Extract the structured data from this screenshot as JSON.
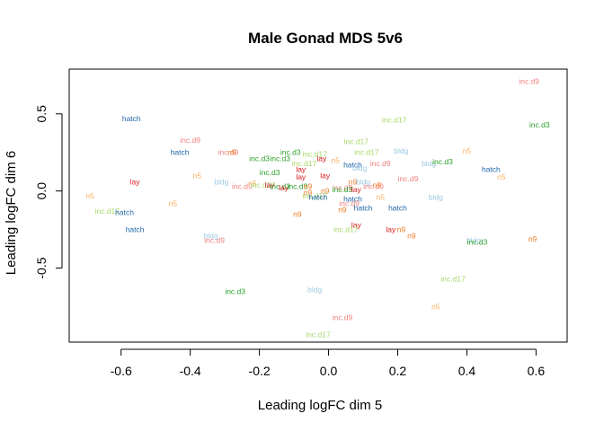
{
  "chart_data": {
    "type": "scatter",
    "title": "Male Gonad MDS 5v6",
    "xlabel": "Leading logFC dim 5",
    "ylabel": "Leading logFC dim 6",
    "xlim": [
      -0.75,
      0.69
    ],
    "ylim": [
      -0.98,
      0.79
    ],
    "x_ticks": [
      -0.6,
      -0.4,
      -0.2,
      0.0,
      0.2,
      0.4,
      0.6
    ],
    "x_tick_labels": [
      "-0.6",
      "-0.4",
      "-0.2",
      "0.0",
      "0.2",
      "0.4",
      "0.6"
    ],
    "y_ticks": [
      -0.5,
      0.0,
      0.5
    ],
    "y_tick_labels": [
      "-0.5",
      "0.0",
      "0.5"
    ],
    "grid": false,
    "legend": "none",
    "group_colors": {
      "hatch": "#1f65a8",
      "inc.d9": "#f08080",
      "inc.d3": "#2ca02c",
      "inc.d17": "#a6d96a",
      "bldg": "#9ecae1",
      "lay": "#d7191c",
      "n5": "#fdae61",
      "n9": "#f07c28"
    },
    "points": [
      {
        "label": "inc.d9",
        "x": 0.58,
        "y": 0.71
      },
      {
        "label": "hatch",
        "x": -0.57,
        "y": 0.47
      },
      {
        "label": "inc.d17",
        "x": 0.19,
        "y": 0.46
      },
      {
        "label": "inc.d3",
        "x": 0.61,
        "y": 0.43
      },
      {
        "label": "inc.d9",
        "x": -0.4,
        "y": 0.33
      },
      {
        "label": "inc.d17",
        "x": 0.08,
        "y": 0.32
      },
      {
        "label": "hatch",
        "x": -0.43,
        "y": 0.25
      },
      {
        "label": "inc.d9",
        "x": -0.29,
        "y": 0.25
      },
      {
        "label": "n9",
        "x": -0.28,
        "y": 0.25
      },
      {
        "label": "inc.d3",
        "x": -0.11,
        "y": 0.25
      },
      {
        "label": "inc.d17",
        "x": -0.04,
        "y": 0.24
      },
      {
        "label": "inc.d17",
        "x": 0.11,
        "y": 0.25
      },
      {
        "label": "bldg",
        "x": 0.21,
        "y": 0.26
      },
      {
        "label": "n5",
        "x": 0.4,
        "y": 0.26
      },
      {
        "label": "inc.d3",
        "x": -0.2,
        "y": 0.21
      },
      {
        "label": "inc.d3",
        "x": -0.14,
        "y": 0.21
      },
      {
        "label": "inc.d17",
        "x": -0.07,
        "y": 0.18
      },
      {
        "label": "lay",
        "x": -0.02,
        "y": 0.21
      },
      {
        "label": "n5",
        "x": 0.02,
        "y": 0.2
      },
      {
        "label": "hatch",
        "x": 0.07,
        "y": 0.17
      },
      {
        "label": "bldg",
        "x": 0.09,
        "y": 0.15
      },
      {
        "label": "inc.d9",
        "x": 0.15,
        "y": 0.18
      },
      {
        "label": "bldg",
        "x": 0.29,
        "y": 0.18
      },
      {
        "label": "inc.d3",
        "x": 0.33,
        "y": 0.19
      },
      {
        "label": "hatch",
        "x": 0.47,
        "y": 0.14
      },
      {
        "label": "lay",
        "x": -0.08,
        "y": 0.14
      },
      {
        "label": "inc.d3",
        "x": -0.17,
        "y": 0.12
      },
      {
        "label": "n5",
        "x": -0.38,
        "y": 0.1
      },
      {
        "label": "lay",
        "x": -0.08,
        "y": 0.09
      },
      {
        "label": "lay",
        "x": -0.01,
        "y": 0.1
      },
      {
        "label": "n5",
        "x": 0.5,
        "y": 0.09
      },
      {
        "label": "inc.d9",
        "x": 0.23,
        "y": 0.08
      },
      {
        "label": "lay",
        "x": -0.56,
        "y": 0.06
      },
      {
        "label": "bldg",
        "x": -0.31,
        "y": 0.06
      },
      {
        "label": "n9",
        "x": 0.07,
        "y": 0.06
      },
      {
        "label": "bldg",
        "x": 0.1,
        "y": 0.06
      },
      {
        "label": "inc.d9",
        "x": -0.25,
        "y": 0.03
      },
      {
        "label": "n5",
        "x": -0.22,
        "y": 0.05
      },
      {
        "label": "inc.d17",
        "x": -0.19,
        "y": 0.04
      },
      {
        "label": "lay",
        "x": -0.17,
        "y": 0.04
      },
      {
        "label": "inc.d3",
        "x": -0.14,
        "y": 0.03
      },
      {
        "label": "lay",
        "x": -0.13,
        "y": 0.02
      },
      {
        "label": "inc.d3",
        "x": -0.09,
        "y": 0.03
      },
      {
        "label": "n9",
        "x": -0.06,
        "y": 0.03
      },
      {
        "label": "inc.d9",
        "x": 0.04,
        "y": 0.02
      },
      {
        "label": "inc.d3",
        "x": 0.04,
        "y": 0.01
      },
      {
        "label": "lay",
        "x": 0.08,
        "y": 0.01
      },
      {
        "label": "inc.d9",
        "x": 0.13,
        "y": 0.03
      },
      {
        "label": "n9",
        "x": 0.14,
        "y": 0.04
      },
      {
        "label": "n9",
        "x": -0.06,
        "y": -0.01
      },
      {
        "label": "n9",
        "x": -0.01,
        "y": 0.0
      },
      {
        "label": "inc.d17",
        "x": -0.04,
        "y": -0.03
      },
      {
        "label": "hatch",
        "x": -0.03,
        "y": -0.04
      },
      {
        "label": "hatch",
        "x": 0.07,
        "y": -0.05
      },
      {
        "label": "n5",
        "x": 0.15,
        "y": -0.04
      },
      {
        "label": "bldg",
        "x": 0.31,
        "y": -0.04
      },
      {
        "label": "n5",
        "x": -0.69,
        "y": -0.03
      },
      {
        "label": "n5",
        "x": -0.45,
        "y": -0.08
      },
      {
        "label": "inc.d9",
        "x": 0.06,
        "y": -0.08
      },
      {
        "label": "hatch",
        "x": 0.1,
        "y": -0.11
      },
      {
        "label": "hatch",
        "x": 0.2,
        "y": -0.11
      },
      {
        "label": "n9",
        "x": -0.09,
        "y": -0.15
      },
      {
        "label": "n9",
        "x": 0.04,
        "y": -0.12
      },
      {
        "label": "inc.d17",
        "x": -0.64,
        "y": -0.13
      },
      {
        "label": "hatch",
        "x": -0.59,
        "y": -0.14
      },
      {
        "label": "lay",
        "x": 0.08,
        "y": -0.22
      },
      {
        "label": "hatch",
        "x": -0.56,
        "y": -0.25
      },
      {
        "label": "inc.d17",
        "x": 0.05,
        "y": -0.25
      },
      {
        "label": "lay",
        "x": 0.18,
        "y": -0.25
      },
      {
        "label": "n9",
        "x": 0.21,
        "y": -0.25
      },
      {
        "label": "n9",
        "x": 0.24,
        "y": -0.29
      },
      {
        "label": "bldg",
        "x": -0.34,
        "y": -0.29
      },
      {
        "label": "inc.d9",
        "x": -0.33,
        "y": -0.32
      },
      {
        "label": "bldg",
        "x": 0.42,
        "y": -0.32
      },
      {
        "label": "inc.d3",
        "x": 0.43,
        "y": -0.33
      },
      {
        "label": "n9",
        "x": 0.59,
        "y": -0.31
      },
      {
        "label": "inc.d17",
        "x": 0.36,
        "y": -0.57
      },
      {
        "label": "inc.d3",
        "x": -0.27,
        "y": -0.65
      },
      {
        "label": "bldg",
        "x": -0.04,
        "y": -0.64
      },
      {
        "label": "n5",
        "x": 0.31,
        "y": -0.75
      },
      {
        "label": "inc.d9",
        "x": 0.04,
        "y": -0.82
      },
      {
        "label": "inc.d17",
        "x": -0.03,
        "y": -0.93
      }
    ]
  }
}
